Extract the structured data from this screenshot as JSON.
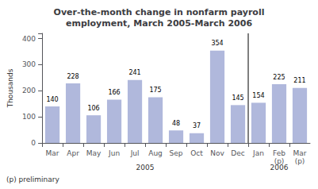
{
  "chart_data": {
    "type": "bar",
    "title": "Over-the-month change in nonfarm payroll\nemployment, March 2005-March 2006",
    "ylabel": "Thousands",
    "categories": [
      "Mar",
      "Apr",
      "May",
      "Jun",
      "Jul",
      "Aug",
      "Sep",
      "Oct",
      "Nov",
      "Dec",
      "Jan",
      "Feb\n(p)",
      "Mar\n(p)"
    ],
    "values": [
      140,
      228,
      106,
      166,
      241,
      175,
      48,
      37,
      354,
      145,
      154,
      225,
      211
    ],
    "color": "#b0b8dc",
    "ylim": [
      0,
      420
    ],
    "yticks": [
      0,
      100,
      200,
      300,
      400
    ],
    "grid": false,
    "data_labels": true,
    "groups": [
      {
        "label": "2005",
        "count": 10
      },
      {
        "label": "2006",
        "count": 3
      }
    ],
    "annotations": [
      "(p) preliminary"
    ]
  }
}
